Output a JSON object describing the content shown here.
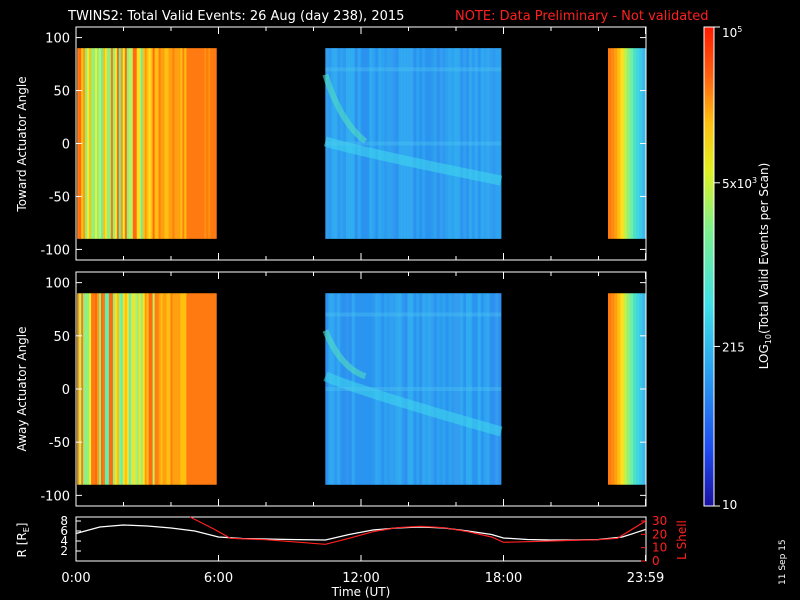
{
  "title": "TWINS2: Total Valid Events: 26 Aug (day 238), 2015",
  "note": "NOTE: Data Preliminary - Not validated",
  "date_stamp": "11 Sep 15",
  "colors": {
    "note": "#ff2020",
    "r_line": "#ffffff",
    "lshell_line": "#ff2020",
    "background": "#000000"
  },
  "chart_data": [
    {
      "type": "heatmap",
      "ylabel": "Toward Actuator Angle",
      "ylim": [
        -110,
        110
      ],
      "yticks": [
        "100",
        "50",
        "0",
        "-50",
        "-100"
      ],
      "ytick_values": [
        100,
        50,
        0,
        -50,
        -100
      ],
      "angle_range": [
        -90,
        90
      ],
      "xlim_hours": [
        0,
        24
      ],
      "data_intervals_hours": [
        [
          0.05,
          5.9
        ],
        [
          10.5,
          17.9
        ],
        [
          22.4,
          23.98
        ]
      ],
      "ridge_feature": "central band with descending curve from ~0 at 10:30 toward ~-35 at 17:30"
    },
    {
      "type": "heatmap",
      "ylabel": "Away Actuator Angle",
      "ylim": [
        -110,
        110
      ],
      "yticks": [
        "100",
        "50",
        "0",
        "-50",
        "-100"
      ],
      "ytick_values": [
        100,
        50,
        0,
        -50,
        -100
      ],
      "angle_range": [
        -90,
        90
      ],
      "xlim_hours": [
        0,
        24
      ],
      "data_intervals_hours": [
        [
          0.05,
          5.9
        ],
        [
          10.5,
          17.9
        ],
        [
          22.4,
          23.98
        ]
      ],
      "ridge_feature": "central band with descending curve from ~10 at 10:30 toward ~-40 at 17:30"
    },
    {
      "type": "line",
      "ylabel_left": "R [R",
      "ylabel_left_sub": "E",
      "ylabel_left_end": "]",
      "ylabel_right": "L Shell",
      "left_ticks": [
        "8",
        "6",
        "4",
        "2"
      ],
      "left_tick_values": [
        8,
        6,
        4,
        2
      ],
      "right_ticks": [
        "30",
        "20",
        "10",
        "0"
      ],
      "right_tick_values": [
        30,
        20,
        10,
        0
      ],
      "left_ylim": [
        0,
        8.8
      ],
      "right_ylim": [
        0,
        33
      ],
      "xlabel": "Time (UT)",
      "xticks": [
        "0:00",
        "6:00",
        "12:00",
        "18:00",
        "23:59"
      ],
      "xtick_hours": [
        0,
        6,
        12,
        18,
        23.98
      ],
      "series": [
        {
          "name": "R",
          "axis": "left",
          "x": [
            0,
            1,
            2,
            3,
            4,
            5,
            6,
            7,
            8,
            9,
            10.5,
            11.5,
            12.5,
            13.5,
            14.5,
            15.5,
            16.5,
            17.5,
            18,
            19,
            20,
            21,
            22,
            23,
            23.98
          ],
          "y": [
            5.5,
            6.8,
            7.2,
            7.0,
            6.6,
            6.0,
            4.8,
            4.5,
            4.4,
            4.3,
            4.2,
            5.3,
            6.2,
            6.6,
            6.8,
            6.6,
            6.0,
            5.3,
            4.6,
            4.3,
            4.2,
            4.2,
            4.3,
            4.8,
            6.3
          ]
        },
        {
          "name": "L Shell",
          "axis": "right",
          "x": [
            4.8,
            5.8,
            6.5,
            8,
            10.5,
            11.5,
            12.5,
            13.5,
            14.5,
            15.5,
            16.5,
            17.5,
            18,
            19,
            20,
            21,
            22,
            22.8,
            23.98
          ],
          "y": [
            33,
            24,
            17,
            16,
            12.5,
            17,
            22,
            25,
            26,
            25,
            22,
            18,
            14,
            14.5,
            15,
            15.5,
            16,
            17,
            30
          ]
        }
      ]
    }
  ],
  "colorbar": {
    "label": "LOG",
    "label_sub": "10",
    "label_rest": "(Total Valid Events per Scan)",
    "ticks": [
      {
        "text": "10",
        "sup": "5",
        "value": 100000
      },
      {
        "text": "5x10",
        "sup": "3",
        "value": 5000
      },
      {
        "text": "215",
        "sup": "",
        "value": 215
      },
      {
        "text": "10",
        "sup": "",
        "value": 10
      }
    ],
    "range": [
      10,
      100000
    ],
    "stops": [
      "#1a10a0",
      "#1f4df0",
      "#2aa0f0",
      "#3fe0e8",
      "#7ff08a",
      "#e0f020",
      "#ffc010",
      "#ff6010",
      "#ff1a00"
    ]
  }
}
